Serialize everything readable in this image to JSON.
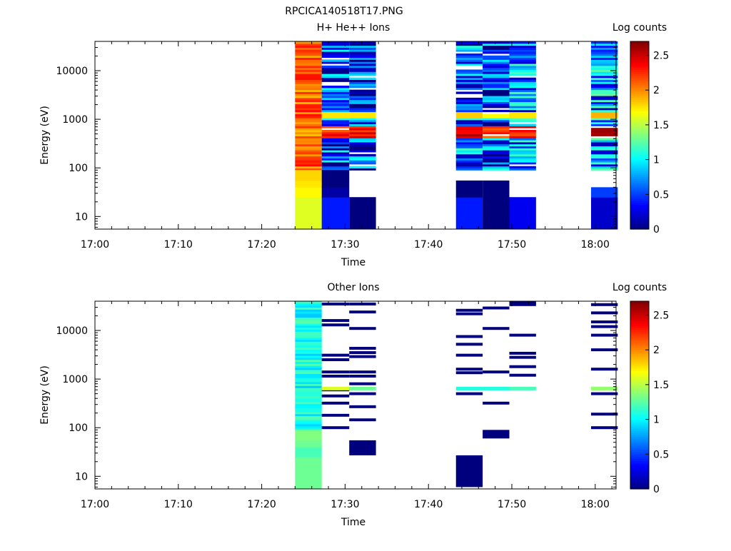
{
  "figure_title": "RPCICA140518T17.PNG",
  "chart_data": [
    {
      "type": "heatmap",
      "title": "H+ He++ Ions",
      "xlabel": "Time",
      "ylabel": "Energy (eV)",
      "colorbar_label": "Log counts",
      "colorbar_ticks": [
        "0",
        "0.5",
        "1",
        "1.5",
        "2",
        "2.5"
      ],
      "colorbar_range": [
        0,
        2.7
      ],
      "colormap": [
        "#00007f",
        "#0000ff",
        "#0080ff",
        "#00ffff",
        "#80ff80",
        "#ffff00",
        "#ff8000",
        "#ff0000",
        "#7f0000"
      ],
      "x_ticks": [
        "17:00",
        "17:10",
        "17:20",
        "17:30",
        "17:40",
        "17:50",
        "18:00"
      ],
      "x_range_minutes": [
        0,
        62.5
      ],
      "y_scale": "log",
      "y_range": [
        5.5,
        40000
      ],
      "y_ticks": [
        "10",
        "100",
        "1000",
        "10000"
      ],
      "columns": [
        {
          "t0": 24.0,
          "t1": 27.2,
          "kind": "dense",
          "level": 2.1,
          "low_levels": [
            1.6,
            1.7,
            1.75,
            1.8
          ],
          "mid_level": 2.7
        },
        {
          "t0": 27.2,
          "t1": 30.5,
          "kind": "dense",
          "level": 0.55,
          "low_levels": [
            0.4,
            0.1,
            0,
            0
          ],
          "mid_level": 2.5
        },
        {
          "t0": 30.5,
          "t1": 33.7,
          "kind": "dense",
          "level": 0.45,
          "low_levels": [
            0,
            -1,
            -1,
            -1
          ],
          "mid_level": 2.5
        },
        {
          "t0": 43.3,
          "t1": 46.5,
          "kind": "dense",
          "level": 0.6,
          "low_levels": [
            0.4,
            0,
            0,
            -1
          ],
          "mid_level": 2.6
        },
        {
          "t0": 46.5,
          "t1": 49.7,
          "kind": "dense",
          "level": 0.5,
          "low_levels": [
            0,
            0,
            0,
            -1
          ],
          "mid_level": 2.4
        },
        {
          "t0": 49.7,
          "t1": 52.9,
          "kind": "dense",
          "level": 0.65,
          "low_levels": [
            0.3,
            -1,
            -1,
            -1
          ],
          "mid_level": 2.5
        },
        {
          "t0": 59.5,
          "t1": 62.7,
          "kind": "dense",
          "level": 0.7,
          "low_levels": [
            0.2,
            0.5,
            -1,
            -1
          ],
          "mid_level": 2.7
        }
      ]
    },
    {
      "type": "heatmap",
      "title": "Other Ions",
      "xlabel": "Time",
      "ylabel": "Energy (eV)",
      "colorbar_label": "Log counts",
      "colorbar_ticks": [
        "0",
        "0.5",
        "1",
        "1.5",
        "2",
        "2.5"
      ],
      "colorbar_range": [
        0,
        2.7
      ],
      "colormap": [
        "#00007f",
        "#0000ff",
        "#0080ff",
        "#00ffff",
        "#80ff80",
        "#ffff00",
        "#ff8000",
        "#ff0000",
        "#7f0000"
      ],
      "x_ticks": [
        "17:00",
        "17:10",
        "17:20",
        "17:30",
        "17:40",
        "17:50",
        "18:00"
      ],
      "x_range_minutes": [
        0,
        62.5
      ],
      "y_scale": "log",
      "y_range": [
        5.5,
        40000
      ],
      "y_ticks": [
        "10",
        "100",
        "1000",
        "10000"
      ],
      "columns": [
        {
          "t0": 24.0,
          "t1": 27.2,
          "kind": "dense",
          "level": 1.05,
          "low_levels": [
            1.3,
            1.2,
            1.3,
            1.35
          ],
          "mid_level": 1.7
        },
        {
          "t0": 27.2,
          "t1": 30.5,
          "kind": "sparse",
          "level": 0,
          "line_energies": [
            35000,
            16000,
            13000,
            3100,
            2500,
            1400,
            1150,
            600,
            450,
            320,
            180,
            100
          ],
          "highlight": {
            "energy": 620,
            "level": 1.6
          }
        },
        {
          "t0": 30.5,
          "t1": 33.7,
          "kind": "sparse",
          "level": 0,
          "line_energies": [
            35000,
            24000,
            11000,
            4300,
            3500,
            2900,
            1400,
            1150,
            800,
            500,
            270,
            145
          ],
          "block": [
            27,
            55
          ],
          "highlight": {
            "energy": 620,
            "level": 1.3
          }
        },
        {
          "t0": 43.3,
          "t1": 46.5,
          "kind": "sparse",
          "level": 0,
          "line_energies": [
            26000,
            22000,
            7500,
            5200,
            3100,
            1600,
            1350,
            500
          ],
          "block": [
            6,
            27
          ],
          "highlight": {
            "energy": 620,
            "level": 1.1
          }
        },
        {
          "t0": 46.5,
          "t1": 49.7,
          "kind": "sparse",
          "level": 0,
          "line_energies": [
            29000,
            11000,
            1400,
            320
          ],
          "block": [
            60,
            90
          ],
          "highlight": {
            "energy": 620,
            "level": 1.1
          }
        },
        {
          "t0": 49.7,
          "t1": 52.9,
          "kind": "sparse",
          "level": 0,
          "line_energies": [
            38000,
            34000,
            8000,
            3400,
            2800,
            1800,
            1200
          ],
          "highlight": {
            "energy": 620,
            "level": 1.2
          }
        },
        {
          "t0": 59.5,
          "t1": 62.7,
          "kind": "sparse",
          "level": 0,
          "line_energies": [
            34000,
            23000,
            15000,
            12000,
            8000,
            4000,
            1600,
            500,
            190,
            100
          ],
          "highlight": {
            "energy": 620,
            "level": 1.4
          }
        }
      ]
    }
  ]
}
